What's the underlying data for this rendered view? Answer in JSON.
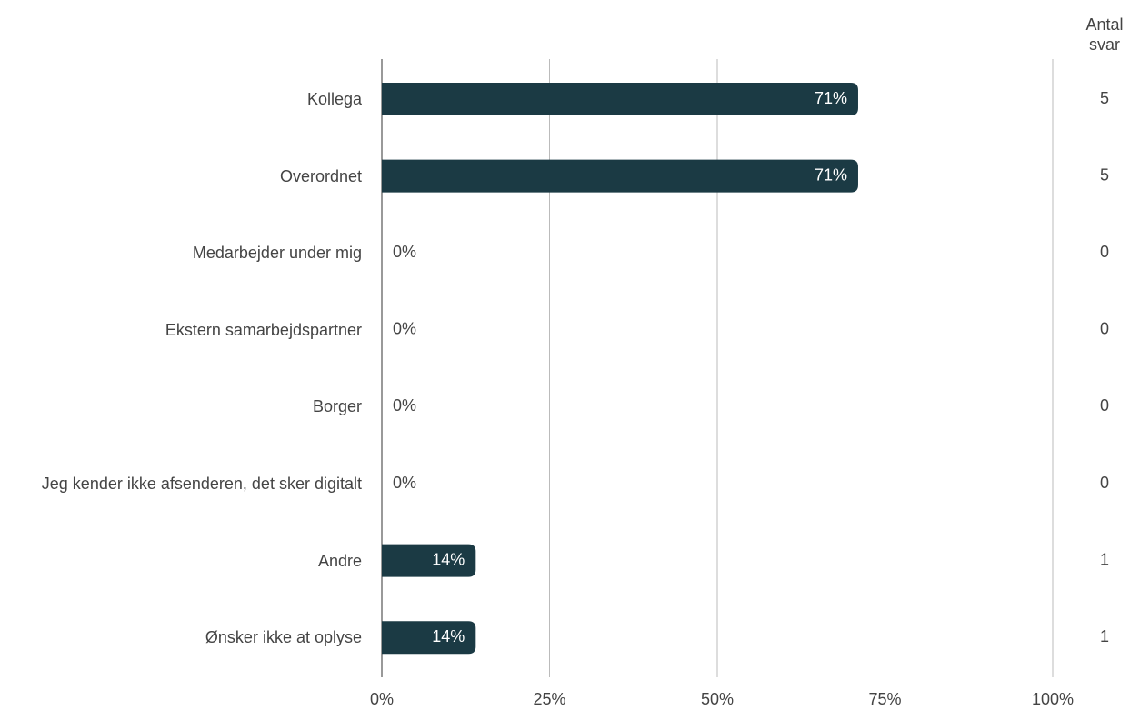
{
  "chart_data": {
    "type": "bar",
    "orientation": "horizontal",
    "categories": [
      "Kollega",
      "Overordnet",
      "Medarbejder under mig",
      "Ekstern samarbejdspartner",
      "Borger",
      "Jeg kender ikke afsenderen, det sker digitalt",
      "Andre",
      "Ønsker ikke at oplyse"
    ],
    "values": [
      71,
      71,
      0,
      0,
      0,
      0,
      14,
      14
    ],
    "value_labels": [
      "71%",
      "71%",
      "0%",
      "0%",
      "0%",
      "0%",
      "14%",
      "14%"
    ],
    "color": "#1b3a44",
    "xlim": [
      0,
      100
    ],
    "xticks": [
      {
        "value": 0,
        "label": "0%"
      },
      {
        "value": 25,
        "label": "25%"
      },
      {
        "value": 50,
        "label": "50%"
      },
      {
        "value": 75,
        "label": "75%"
      },
      {
        "value": 100,
        "label": "100%"
      }
    ],
    "grid": true,
    "count_label": "Antal svar",
    "counts": [
      5,
      5,
      0,
      0,
      0,
      0,
      1,
      1
    ]
  }
}
